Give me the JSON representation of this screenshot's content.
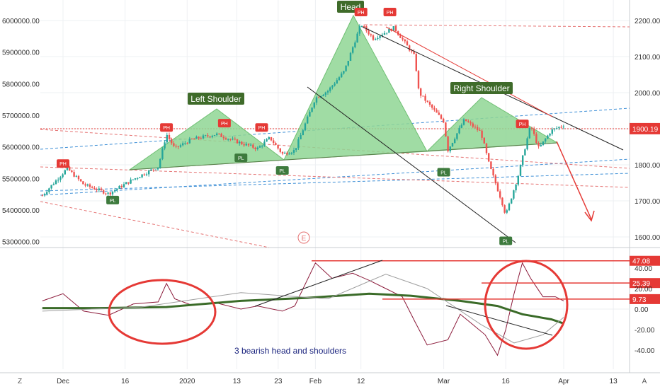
{
  "chart_data": [
    {
      "type": "candlestick",
      "title": "",
      "left_axis": {
        "ticks": [
          "6000000.00",
          "5900000.00",
          "5800000.00",
          "5700000.00",
          "5600000.00",
          "5500000.00",
          "5400000.00",
          "5300000.00"
        ],
        "range": [
          5280000,
          6040000
        ]
      },
      "right_axis": {
        "ticks": [
          "2200.00",
          "2100.00",
          "2000.00",
          "1900.00",
          "1800.00",
          "1700.00",
          "1600.00"
        ],
        "range": [
          1560,
          2260
        ]
      },
      "x_ticks": [
        "Dec",
        "16",
        "2020",
        "13",
        "23",
        "Feb",
        "12",
        "Mar",
        "16",
        "Apr",
        "13"
      ],
      "last_price_label": "1900.19",
      "last_price_color": "#e53935",
      "price_series": {
        "name": "",
        "approx_close_by_date": [
          [
            "Nov 26",
            1715
          ],
          [
            "Dec 2",
            1790
          ],
          [
            "Dec 6",
            1745
          ],
          [
            "Dec 12",
            1720
          ],
          [
            "Dec 18",
            1760
          ],
          [
            "Dec 24",
            1795
          ],
          [
            "Dec 26",
            1885
          ],
          [
            "Dec 28",
            1845
          ],
          [
            "Jan 2",
            1870
          ],
          [
            "Jan 8",
            1885
          ],
          [
            "Jan 14",
            1860
          ],
          [
            "Jan 18",
            1845
          ],
          [
            "Jan 21",
            1875
          ],
          [
            "Jan 24",
            1830
          ],
          [
            "Jan 27",
            1840
          ],
          [
            "Feb 1",
            1985
          ],
          [
            "Feb 4",
            2005
          ],
          [
            "Feb 8",
            2060
          ],
          [
            "Feb 12",
            2190
          ],
          [
            "Feb 15",
            2150
          ],
          [
            "Feb 20",
            2180
          ],
          [
            "Feb 25",
            2100
          ],
          [
            "Feb 26",
            2000
          ],
          [
            "Mar 1",
            1920
          ],
          [
            "Mar 2",
            1840
          ],
          [
            "Mar 6",
            1925
          ],
          [
            "Mar 10",
            1890
          ],
          [
            "Mar 12",
            1800
          ],
          [
            "Mar 15",
            1700
          ],
          [
            "Mar 16",
            1660
          ],
          [
            "Mar 19",
            1770
          ],
          [
            "Mar 22",
            1910
          ],
          [
            "Mar 24",
            1845
          ],
          [
            "Mar 27",
            1895
          ],
          [
            "Mar 30",
            1910
          ],
          [
            "Apr 1",
            1900
          ]
        ]
      },
      "pattern": {
        "head_label": "Head",
        "left_shoulder_label": "Left Shoulder",
        "right_shoulder_label": "Right Shoulder",
        "fill_color": "#8fd694",
        "label_bg": "#3f6b2a"
      },
      "pivot_markers": [
        {
          "label": "PH",
          "kind": "high",
          "date": "Dec 1",
          "value": 1780
        },
        {
          "label": "PL",
          "kind": "low",
          "date": "Dec 13",
          "value": 1718
        },
        {
          "label": "PH",
          "kind": "high",
          "date": "Dec 26",
          "value": 1880
        },
        {
          "label": "PH",
          "kind": "high",
          "date": "Jan 10",
          "value": 1892
        },
        {
          "label": "PL",
          "kind": "low",
          "date": "Jan 14",
          "value": 1835
        },
        {
          "label": "PH",
          "kind": "high",
          "date": "Jan 19",
          "value": 1880
        },
        {
          "label": "PL",
          "kind": "low",
          "date": "Jan 24",
          "value": 1800
        },
        {
          "label": "PH",
          "kind": "high",
          "date": "Feb 12",
          "value": 2200
        },
        {
          "label": "PH",
          "kind": "high",
          "date": "Feb 19",
          "value": 2200
        },
        {
          "label": "PL",
          "kind": "low",
          "date": "Mar 1",
          "value": 1795
        },
        {
          "label": "PH",
          "kind": "high",
          "date": "Mar 20",
          "value": 1890
        },
        {
          "label": "PL",
          "kind": "low",
          "date": "Mar 16",
          "value": 1605
        }
      ],
      "event_marker": "E"
    },
    {
      "type": "line",
      "title": "",
      "yticks": [
        "40.00",
        "20.00",
        "0.00",
        "-20.00",
        "-40.00"
      ],
      "ylim": [
        -50,
        55
      ],
      "levels": [
        {
          "label": "47.08",
          "value": 47.08,
          "color": "#e53935"
        },
        {
          "label": "25.39",
          "value": 25.39,
          "color": "#e53935"
        },
        {
          "label": "9.73",
          "value": 9.73,
          "color": "#e53935"
        }
      ],
      "series": [
        {
          "name": "",
          "color": "#8b1a3a",
          "points": [
            [
              "Nov 26",
              8
            ],
            [
              "Dec 1",
              15
            ],
            [
              "Dec 6",
              -2
            ],
            [
              "Dec 12",
              -6
            ],
            [
              "Dec 18",
              5
            ],
            [
              "Dec 24",
              7
            ],
            [
              "Dec 26",
              25
            ],
            [
              "Dec 28",
              10
            ],
            [
              "Jan 2",
              4
            ],
            [
              "Jan 8",
              6
            ],
            [
              "Jan 14",
              0
            ],
            [
              "Jan 18",
              3
            ],
            [
              "Jan 24",
              -2
            ],
            [
              "Jan 27",
              3
            ],
            [
              "Feb 1",
              45
            ],
            [
              "Feb 5",
              30
            ],
            [
              "Feb 10",
              35
            ],
            [
              "Feb 14",
              28
            ],
            [
              "Feb 18",
              20
            ],
            [
              "Feb 22",
              12
            ],
            [
              "Feb 25",
              -12
            ],
            [
              "Feb 28",
              -35
            ],
            [
              "Mar 2",
              -30
            ],
            [
              "Mar 5",
              -5
            ],
            [
              "Mar 8",
              -15
            ],
            [
              "Mar 11",
              -25
            ],
            [
              "Mar 14",
              -45
            ],
            [
              "Mar 16",
              -20
            ],
            [
              "Mar 18",
              15
            ],
            [
              "Mar 20",
              45
            ],
            [
              "Mar 22",
              30
            ],
            [
              "Mar 25",
              12
            ],
            [
              "Mar 28",
              12
            ],
            [
              "Mar 30",
              8
            ]
          ]
        },
        {
          "name": "",
          "color": "#3a6b28",
          "points": [
            [
              "Nov 26",
              1
            ],
            [
              "Dec 10",
              1
            ],
            [
              "Dec 26",
              2
            ],
            [
              "Jan 14",
              8
            ],
            [
              "Jan 30",
              11
            ],
            [
              "Feb 14",
              15
            ],
            [
              "Feb 24",
              13
            ],
            [
              "Mar 5",
              8
            ],
            [
              "Mar 14",
              3
            ],
            [
              "Mar 20",
              -5
            ],
            [
              "Mar 27",
              -10
            ],
            [
              "Apr 1",
              -14
            ]
          ]
        },
        {
          "name": "",
          "color": "#9e9e9e",
          "points": [
            [
              "Nov 26",
              -2
            ],
            [
              "Dec 20",
              2
            ],
            [
              "Jan 14",
              16
            ],
            [
              "Feb 4",
              10
            ],
            [
              "Feb 18",
              34
            ],
            [
              "Feb 28",
              20
            ],
            [
              "Mar 10",
              -15
            ],
            [
              "Mar 18",
              -33
            ],
            [
              "Mar 25",
              -25
            ],
            [
              "Apr 1",
              -8
            ]
          ]
        }
      ],
      "annotation": "3 bearish head and shoulders"
    }
  ],
  "corner_labels": {
    "bottom_left": "Z",
    "bottom_right": "A"
  }
}
